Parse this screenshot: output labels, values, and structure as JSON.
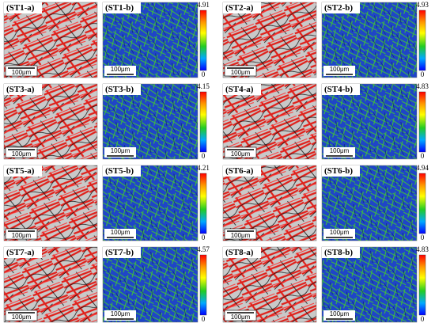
{
  "panels": [
    {
      "a_label": "(ST1-a)",
      "b_label": "(ST1-b)",
      "scale_a": "100μm",
      "scale_b": "100μm",
      "colorbar_max": 4.91,
      "colorbar_min": 0
    },
    {
      "a_label": "(ST2-a)",
      "b_label": "(ST2-b)",
      "scale_a": "100μm",
      "scale_b": "100μm",
      "colorbar_max": 4.93,
      "colorbar_min": 0
    },
    {
      "a_label": "(ST3-a)",
      "b_label": "(ST3-b)",
      "scale_a": "100μm",
      "scale_b": "100μm",
      "colorbar_max": 4.15,
      "colorbar_min": 0
    },
    {
      "a_label": "(ST4-a)",
      "b_label": "(ST4-b)",
      "scale_a": "100μm",
      "scale_b": "100μm",
      "colorbar_max": 4.83,
      "colorbar_min": 0
    },
    {
      "a_label": "(ST5-a)",
      "b_label": "(ST5-b)",
      "scale_a": "100μm",
      "scale_b": "100μm",
      "colorbar_max": 4.21,
      "colorbar_min": 0
    },
    {
      "a_label": "(ST6-a)",
      "b_label": "(ST6-b)",
      "scale_a": "100μm",
      "scale_b": "100μm",
      "colorbar_max": 4.94,
      "colorbar_min": 0
    },
    {
      "a_label": "(ST7-a)",
      "b_label": "(ST7-b)",
      "scale_a": "100μm",
      "scale_b": "100μm",
      "colorbar_max": 4.57,
      "colorbar_min": 0
    },
    {
      "a_label": "(ST8-a)",
      "b_label": "(ST8-b)",
      "scale_a": "100μm",
      "scale_b": "100μm",
      "colorbar_max": 4.83,
      "colorbar_min": 0
    }
  ]
}
